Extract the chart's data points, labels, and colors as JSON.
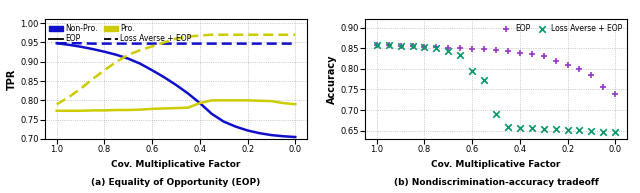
{
  "left_title": "(a) Equality of Opportunity (EOP)",
  "right_title": "(b) Nondiscrimination-accuracy tradeoff",
  "xlabel": "Cov. Multiplicative Factor",
  "left_ylabel": "TPR",
  "right_ylabel": "Accuracy",
  "x_ticks": [
    1,
    0.8,
    0.6,
    0.4,
    0.2,
    0
  ],
  "left_ylim": [
    0.7,
    1.01
  ],
  "left_yticks": [
    0.7,
    0.75,
    0.8,
    0.85,
    0.9,
    0.95,
    1.0
  ],
  "right_ylim": [
    0.63,
    0.92
  ],
  "right_yticks": [
    0.65,
    0.7,
    0.75,
    0.8,
    0.85,
    0.9
  ],
  "blue_color": "#1010CC",
  "yellow_color": "#CCCC00",
  "purple_color": "#9933CC",
  "green_color": "#009966",
  "non_pro_eop_solid": [
    0.948,
    0.944,
    0.939,
    0.933,
    0.926,
    0.918,
    0.908,
    0.895,
    0.878,
    0.86,
    0.84,
    0.818,
    0.793,
    0.765,
    0.745,
    0.732,
    0.722,
    0.715,
    0.71,
    0.707,
    0.705
  ],
  "non_pro_laeop_dashed": [
    0.948,
    0.948,
    0.948,
    0.947,
    0.947,
    0.947,
    0.947,
    0.947,
    0.947,
    0.947,
    0.947,
    0.947,
    0.947,
    0.947,
    0.947,
    0.947,
    0.947,
    0.947,
    0.947,
    0.947,
    0.947
  ],
  "pro_eop_solid": [
    0.773,
    0.773,
    0.773,
    0.774,
    0.774,
    0.775,
    0.775,
    0.776,
    0.778,
    0.779,
    0.78,
    0.781,
    0.793,
    0.8,
    0.8,
    0.8,
    0.8,
    0.799,
    0.798,
    0.793,
    0.79
  ],
  "pro_laeop_dashed": [
    0.79,
    0.808,
    0.83,
    0.855,
    0.878,
    0.9,
    0.918,
    0.93,
    0.94,
    0.95,
    0.96,
    0.965,
    0.968,
    0.97,
    0.97,
    0.97,
    0.97,
    0.97,
    0.97,
    0.97,
    0.97
  ],
  "x_left": [
    1.0,
    0.95,
    0.9,
    0.85,
    0.8,
    0.75,
    0.7,
    0.65,
    0.6,
    0.55,
    0.5,
    0.45,
    0.4,
    0.35,
    0.3,
    0.25,
    0.2,
    0.15,
    0.1,
    0.05,
    0.0
  ],
  "eop_acc": [
    0.858,
    0.857,
    0.856,
    0.855,
    0.854,
    0.852,
    0.851,
    0.85,
    0.848,
    0.847,
    0.845,
    0.843,
    0.838,
    0.835,
    0.83,
    0.82,
    0.81,
    0.8,
    0.786,
    0.755,
    0.74
  ],
  "laeop_acc": [
    0.858,
    0.857,
    0.856,
    0.855,
    0.853,
    0.85,
    0.843,
    0.833,
    0.795,
    0.773,
    0.69,
    0.66,
    0.657,
    0.656,
    0.655,
    0.654,
    0.652,
    0.651,
    0.65,
    0.648,
    0.648
  ],
  "x_right": [
    1.0,
    0.95,
    0.9,
    0.85,
    0.8,
    0.75,
    0.7,
    0.65,
    0.6,
    0.55,
    0.5,
    0.45,
    0.4,
    0.35,
    0.3,
    0.25,
    0.2,
    0.15,
    0.1,
    0.05,
    0.0
  ]
}
